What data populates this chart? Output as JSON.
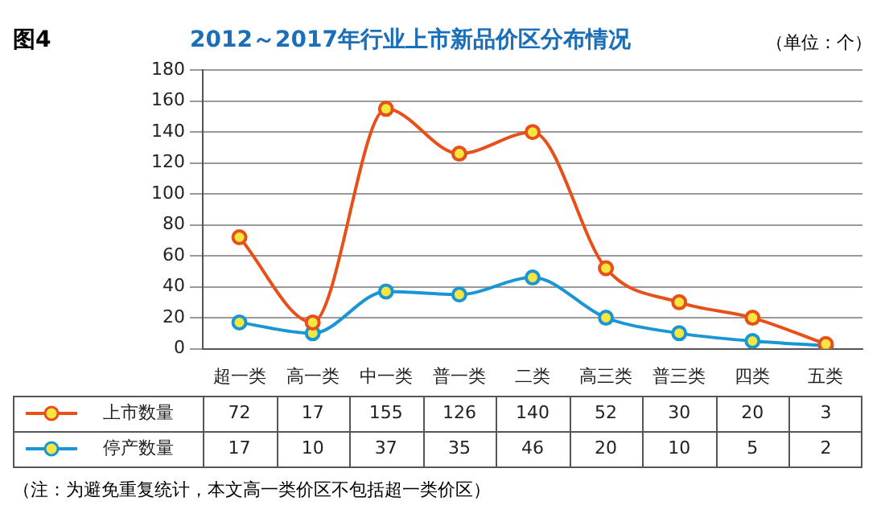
{
  "chart_data": {
    "type": "line",
    "title": "2012～2017年行业上市新品价区分布情况",
    "annotations": [
      "图4",
      "（单位：个）",
      "（注：为避免重复统计，本文高一类价区不包括超一类价区）"
    ],
    "categories": [
      "超一类",
      "高一类",
      "中一类",
      "普一类",
      "二类",
      "高三类",
      "普三类",
      "四类",
      "五类"
    ],
    "series": [
      {
        "name": "上市数量",
        "color": "#e8501a",
        "values": [
          72,
          17,
          155,
          126,
          140,
          52,
          30,
          20,
          3
        ]
      },
      {
        "name": "停产数量",
        "color": "#1a96d4",
        "values": [
          17,
          10,
          37,
          35,
          46,
          20,
          10,
          5,
          2
        ]
      }
    ],
    "ylim": [
      0,
      180
    ],
    "yticks": [
      0,
      20,
      40,
      60,
      80,
      100,
      120,
      140,
      160,
      180
    ],
    "grid": "y",
    "legend": "bottom left",
    "marker": "circle",
    "line_style": "solid",
    "data_labels": true
  }
}
